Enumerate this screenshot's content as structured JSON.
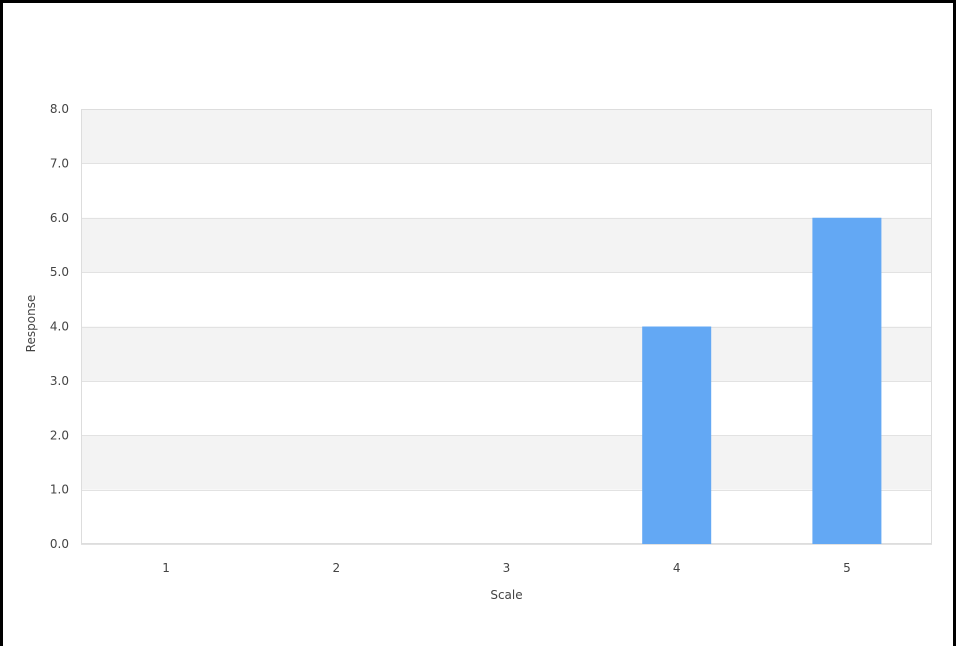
{
  "chart_data": {
    "type": "bar",
    "categories": [
      "1",
      "2",
      "3",
      "4",
      "5"
    ],
    "values": [
      0,
      0,
      0,
      4,
      6
    ],
    "title": "",
    "xlabel": "Scale",
    "ylabel": "Response",
    "ylim": [
      0,
      8
    ],
    "y_ticks": [
      "0.0",
      "1.0",
      "2.0",
      "3.0",
      "4.0",
      "5.0",
      "6.0",
      "7.0",
      "8.0"
    ],
    "grid": true,
    "legend": "none",
    "colors": {
      "bar": "#63a8f4",
      "band": "#f3f3f3",
      "gridline": "#e2e2e2",
      "text": "#444444",
      "frame": "#000000"
    }
  }
}
